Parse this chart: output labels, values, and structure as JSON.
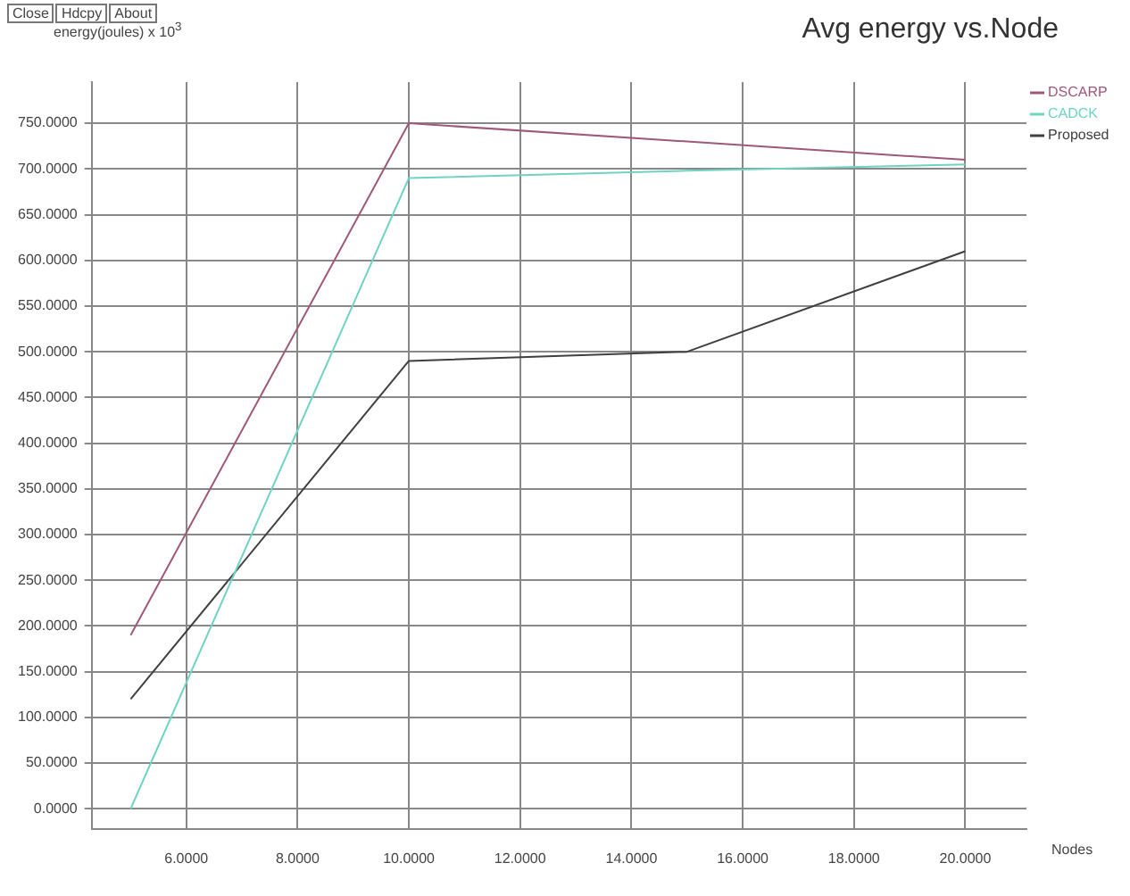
{
  "chart_data": {
    "type": "line",
    "title": "Avg energy vs.Node",
    "xlabel": "Nodes",
    "ylabel": "energy(joules) x 10$^{3}$",
    "annotations": [
      "Close",
      "Hdcpy",
      "About"
    ],
    "x": [
      5,
      10,
      15,
      20
    ],
    "series": [
      {
        "name": "DSCARP",
        "color": "#a0587a",
        "values": [
          190,
          750,
          730,
          710
        ]
      },
      {
        "name": "CADCK",
        "color": "#6fd3c4",
        "values": [
          0,
          690,
          698,
          705
        ]
      },
      {
        "name": "Proposed",
        "color": "#404040",
        "values": [
          120,
          490,
          500,
          610
        ]
      }
    ],
    "xlim": [
      4.3,
      21.1
    ],
    "xticks": [
      {
        "value": 6,
        "label": "6.0000"
      },
      {
        "value": 8,
        "label": "8.0000"
      },
      {
        "value": 10,
        "label": "10.0000"
      },
      {
        "value": 12,
        "label": "12.0000"
      },
      {
        "value": 14,
        "label": "14.0000"
      },
      {
        "value": 16,
        "label": "16.0000"
      },
      {
        "value": 18,
        "label": "18.0000"
      },
      {
        "value": 20,
        "label": "20.0000"
      }
    ],
    "ylim": [
      -22,
      795
    ],
    "yticks": [
      {
        "value": 0,
        "label": "0.0000"
      },
      {
        "value": 50,
        "label": "50.0000"
      },
      {
        "value": 100,
        "label": "100.0000"
      },
      {
        "value": 150,
        "label": "150.0000"
      },
      {
        "value": 200,
        "label": "200.0000"
      },
      {
        "value": 250,
        "label": "250.0000"
      },
      {
        "value": 300,
        "label": "300.0000"
      },
      {
        "value": 350,
        "label": "350.0000"
      },
      {
        "value": 400,
        "label": "400.0000"
      },
      {
        "value": 450,
        "label": "450.0000"
      },
      {
        "value": 500,
        "label": "500.0000"
      },
      {
        "value": 550,
        "label": "550.0000"
      },
      {
        "value": 600,
        "label": "600.0000"
      },
      {
        "value": 650,
        "label": "650.0000"
      },
      {
        "value": 700,
        "label": "700.0000"
      },
      {
        "value": 750,
        "label": "750.0000"
      }
    ],
    "grid": true,
    "legend": "top right",
    "marker": "none",
    "line_style": "solid"
  }
}
